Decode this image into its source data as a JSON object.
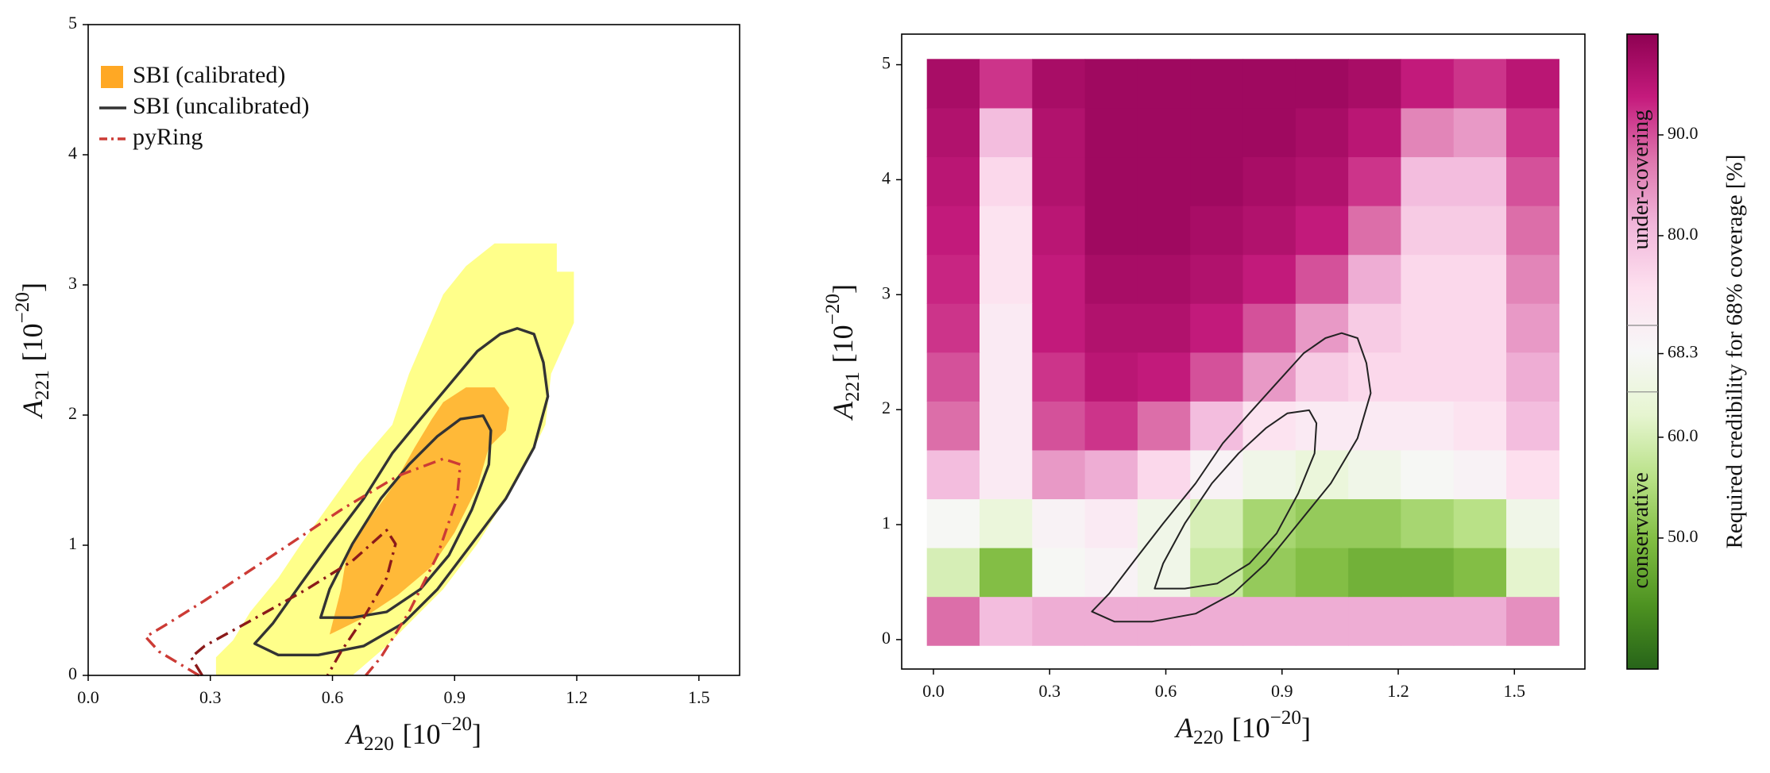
{
  "chart_data": [
    {
      "type": "contour",
      "xlabel": [
        "A",
        "220",
        "[10",
        "−20",
        "]"
      ],
      "ylabel": [
        "A",
        "221",
        "[10",
        "−20",
        "]"
      ],
      "xlim": [
        0,
        1.6
      ],
      "ylim": [
        0,
        5
      ],
      "xticks": [
        {
          "value": 0,
          "label": "0.0"
        },
        0.3,
        0.6,
        0.9,
        1.2,
        1.5
      ],
      "yticks": [
        0,
        1,
        2,
        3,
        4,
        5
      ],
      "legend": "upper left",
      "series": [
        {
          "name": "SBI (calibrated)",
          "style": "filled",
          "closed": true,
          "color": "#ffa824",
          "levels": [
            {
              "color": "#ffff8a",
              "x": [
                0.314,
                0.314,
                0.356,
                0.398,
                0.467,
                0.523,
                0.593,
                0.663,
                0.747,
                0.788,
                0.83,
                0.872,
                0.928,
                0.998,
                1.151,
                1.151,
                1.193,
                1.193,
                1.137,
                1.123,
                1.082,
                1.026,
                0.956,
                0.872,
                0.802,
                0.733,
                0.649
              ],
              "y": [
                0,
                0.139,
                0.27,
                0.488,
                0.749,
                1.01,
                1.315,
                1.62,
                1.925,
                2.317,
                2.622,
                2.927,
                3.145,
                3.319,
                3.319,
                3.101,
                3.101,
                2.709,
                2.317,
                1.925,
                1.664,
                1.359,
                1.01,
                0.662,
                0.444,
                0.226,
                0
              ]
            },
            {
              "color": "#ffb938",
              "x": [
                0.593,
                0.621,
                0.635,
                0.677,
                0.747,
                0.802,
                0.844,
                0.872,
                0.928,
                0.998,
                1.034,
                1.026,
                0.984,
                0.956,
                0.9,
                0.844,
                0.761,
                0.677,
                0.621
              ],
              "y": [
                0.314,
                0.662,
                0.923,
                1.141,
                1.446,
                1.751,
                1.969,
                2.099,
                2.213,
                2.213,
                2.056,
                1.882,
                1.751,
                1.446,
                1.098,
                0.836,
                0.618,
                0.444,
                0.357
              ]
            }
          ]
        },
        {
          "name": "SBI (uncalibrated)",
          "style": "solid",
          "closed": true,
          "color": "#333333",
          "levels": [
            {
              "x": [
                0.409,
                0.454,
                0.523,
                0.593,
                0.677,
                0.747,
                0.816,
                0.886,
                0.956,
                1.012,
                1.054,
                1.095,
                1.118,
                1.129,
                1.095,
                1.026,
                0.942,
                0.858,
                0.774,
                0.677,
                0.565,
                0.467
              ],
              "y": [
                0.244,
                0.401,
                0.706,
                1.01,
                1.359,
                1.707,
                1.969,
                2.23,
                2.491,
                2.622,
                2.666,
                2.622,
                2.404,
                2.143,
                1.751,
                1.359,
                1.01,
                0.662,
                0.401,
                0.226,
                0.157,
                0.157
              ]
            },
            {
              "x": [
                0.571,
                0.593,
                0.649,
                0.719,
                0.788,
                0.858,
                0.914,
                0.97,
                0.989,
                0.984,
                0.942,
                0.886,
                0.816,
                0.733,
                0.649
              ],
              "y": [
                0.444,
                0.662,
                1.01,
                1.359,
                1.62,
                1.838,
                1.969,
                1.995,
                1.882,
                1.62,
                1.272,
                0.923,
                0.662,
                0.488,
                0.444
              ]
            }
          ]
        },
        {
          "name": "pyRing",
          "style": "dashdot",
          "closed": false,
          "color": "#cc3b35",
          "levels": [
            {
              "color": "#cc3b35",
              "x": [
                0.272,
                0.174,
                0.141,
                0.188,
                0.286,
                0.454,
                0.621,
                0.761,
                0.872,
                0.914,
                0.906,
                0.858,
                0.788,
                0.719,
                0.682
              ],
              "y": [
                0,
                0.183,
                0.296,
                0.383,
                0.575,
                0.923,
                1.272,
                1.533,
                1.664,
                1.62,
                1.359,
                0.923,
                0.488,
                0.139,
                0
              ]
            },
            {
              "color": "#8b1a1a",
              "x": [
                0.28,
                0.253,
                0.286,
                0.398,
                0.537,
                0.649,
                0.733,
                0.755,
                0.733,
                0.677,
                0.621,
                0.588
              ],
              "y": [
                0,
                0.139,
                0.226,
                0.418,
                0.662,
                0.88,
                1.115,
                1.01,
                0.749,
                0.444,
                0.183,
                0
              ]
            }
          ]
        }
      ]
    },
    {
      "type": "heatmap",
      "xlabel": [
        "A",
        "220",
        "[10",
        "−20",
        "]"
      ],
      "ylabel": [
        "A",
        "221",
        "[10",
        "−20",
        "]"
      ],
      "xlim": [
        -0.082,
        1.682
      ],
      "ylim": [
        -0.256,
        5.266
      ],
      "xticks": [
        {
          "value": 0,
          "label": "0.0"
        },
        0.3,
        0.6,
        0.9,
        1.2,
        1.5
      ],
      "yticks": [
        0,
        1,
        2,
        3,
        4,
        5
      ],
      "colormap": "PiYG",
      "xbins": [
        -0.017,
        0.119,
        0.255,
        0.391,
        0.527,
        0.663,
        0.799,
        0.935,
        1.071,
        1.207,
        1.343,
        1.479,
        1.615
      ],
      "ybins": [
        -0.05,
        0.375,
        0.8,
        1.225,
        1.65,
        2.075,
        2.5,
        2.925,
        3.35,
        3.775,
        4.2,
        4.625,
        5.05
      ],
      "z": [
        [
          88,
          80,
          82,
          82,
          82,
          82,
          82,
          82,
          82,
          82,
          82,
          85
        ],
        [
          60,
          50,
          68,
          70,
          66,
          58,
          52,
          50,
          48,
          48,
          50,
          62
        ],
        [
          68,
          64,
          70,
          72,
          66,
          60,
          54,
          52,
          52,
          54,
          56,
          66
        ],
        [
          80,
          72,
          84,
          82,
          76,
          70,
          66,
          64,
          66,
          68,
          70,
          75
        ],
        [
          88,
          72,
          90,
          92,
          88,
          80,
          74,
          72,
          72,
          72,
          74,
          80
        ],
        [
          90,
          72,
          92,
          95,
          94,
          90,
          84,
          78,
          76,
          76,
          76,
          82
        ],
        [
          92,
          72,
          94,
          96,
          96,
          94,
          90,
          84,
          78,
          76,
          76,
          84
        ],
        [
          93,
          74,
          94,
          97,
          97,
          96,
          94,
          90,
          82,
          76,
          76,
          86
        ],
        [
          94,
          74,
          95,
          98,
          98,
          97,
          96,
          94,
          88,
          78,
          78,
          88
        ],
        [
          95,
          76,
          96,
          98,
          98,
          98,
          97,
          96,
          92,
          80,
          80,
          90
        ],
        [
          96,
          80,
          96,
          98,
          98,
          98,
          98,
          97,
          95,
          86,
          84,
          92
        ],
        [
          97,
          92,
          97,
          98,
          98,
          98,
          98,
          98,
          97,
          94,
          92,
          95
        ]
      ],
      "contour_color": "#222222",
      "contours": [
        {
          "x": [
            0.409,
            0.454,
            0.523,
            0.593,
            0.677,
            0.747,
            0.816,
            0.886,
            0.956,
            1.012,
            1.054,
            1.095,
            1.118,
            1.129,
            1.095,
            1.026,
            0.942,
            0.858,
            0.774,
            0.677,
            0.565,
            0.467
          ],
          "y": [
            0.244,
            0.401,
            0.706,
            1.01,
            1.359,
            1.707,
            1.969,
            2.23,
            2.491,
            2.622,
            2.666,
            2.622,
            2.404,
            2.143,
            1.751,
            1.359,
            1.01,
            0.662,
            0.401,
            0.226,
            0.157,
            0.157
          ]
        },
        {
          "x": [
            0.571,
            0.593,
            0.649,
            0.719,
            0.788,
            0.858,
            0.914,
            0.97,
            0.989,
            0.984,
            0.942,
            0.886,
            0.816,
            0.733,
            0.649
          ],
          "y": [
            0.444,
            0.662,
            1.01,
            1.359,
            1.62,
            1.838,
            1.969,
            1.995,
            1.882,
            1.62,
            1.272,
            0.923,
            0.662,
            0.488,
            0.444
          ]
        }
      ],
      "clim": [
        37,
        100
      ],
      "cticks": [
        {
          "value": 90,
          "label": "90.0"
        },
        {
          "value": 80,
          "label": "80.0"
        },
        68.3,
        {
          "value": 60,
          "label": "60.0"
        },
        {
          "value": 50,
          "label": "50.0"
        }
      ],
      "colorbar_marks": [
        71.1,
        64.5
      ],
      "colorbar_label": "Required credibility for 68% coverage [%]",
      "annotations": [
        "under-covering",
        "conservative"
      ]
    }
  ]
}
